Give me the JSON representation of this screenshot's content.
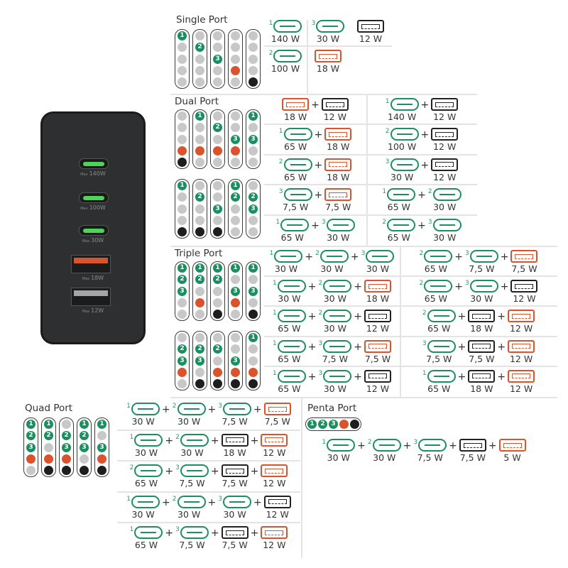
{
  "colors": {
    "usb_c": "#1a8f5f",
    "usb_a_orange": "#d9542c",
    "usb_a_black": "#222222",
    "charger_body": "#2e2f31"
  },
  "charger": {
    "ports": [
      {
        "type": "usb-c",
        "max_label": "Max",
        "watt": "140W"
      },
      {
        "type": "usb-c",
        "max_label": "Max",
        "watt": "100W"
      },
      {
        "type": "usb-c",
        "max_label": "Max",
        "watt": "30W"
      },
      {
        "type": "usb-a",
        "color": "orange",
        "max_label": "Max",
        "watt": "18W"
      },
      {
        "type": "usb-a",
        "color": "gray",
        "max_label": "Max",
        "watt": "12W"
      }
    ]
  },
  "single": {
    "title": "Single Port",
    "indicators": [
      [
        [
          "1",
          "",
          "",
          "",
          ""
        ],
        [
          "",
          "2",
          "",
          "",
          ""
        ],
        [
          "",
          "",
          "3",
          "",
          ""
        ],
        [
          "",
          "",
          "",
          "orange",
          ""
        ],
        [
          "",
          "",
          "",
          "",
          "black"
        ]
      ]
    ],
    "rows": [
      [
        [
          {
            "type": "c",
            "port": "1",
            "watt": "140 W"
          }
        ],
        [
          {
            "type": "c",
            "port": "3",
            "watt": "30 W"
          }
        ],
        [
          {
            "type": "a",
            "color": "black",
            "watt": "12 W"
          }
        ]
      ],
      [
        [
          {
            "type": "c",
            "port": "2",
            "watt": "100 W"
          }
        ],
        [
          {
            "type": "a",
            "color": "orange",
            "watt": "18 W"
          }
        ]
      ]
    ]
  },
  "dual": {
    "title": "Dual Port",
    "indicators": [
      [
        [
          "",
          "",
          "",
          "orange",
          "black"
        ],
        [
          "1",
          "",
          "",
          "orange",
          ""
        ],
        [
          "",
          "2",
          "",
          "orange",
          ""
        ],
        [
          "",
          "",
          "3",
          "orange",
          ""
        ],
        [
          "1",
          "",
          "3",
          "",
          ""
        ]
      ],
      [
        [
          "1",
          "",
          "",
          "",
          "black"
        ],
        [
          "",
          "2",
          "",
          "",
          "black"
        ],
        [
          "",
          "",
          "3",
          "",
          "black"
        ],
        [
          "1",
          "2",
          "",
          "",
          ""
        ],
        [
          "",
          "2",
          "3",
          "",
          ""
        ]
      ]
    ],
    "rows": [
      [
        [
          {
            "type": "a",
            "color": "orange",
            "watt": "18 W"
          },
          {
            "type": "a",
            "color": "black",
            "watt": "12 W"
          }
        ],
        [
          {
            "type": "c",
            "port": "1",
            "watt": "140 W"
          },
          {
            "type": "a",
            "color": "black",
            "watt": "12 W"
          }
        ]
      ],
      [
        [
          {
            "type": "c",
            "port": "1",
            "watt": "65 W"
          },
          {
            "type": "a",
            "color": "orange",
            "watt": "18 W"
          }
        ],
        [
          {
            "type": "c",
            "port": "2",
            "watt": "100 W"
          },
          {
            "type": "a",
            "color": "black",
            "watt": "12 W"
          }
        ]
      ],
      [
        [
          {
            "type": "c",
            "port": "2",
            "watt": "65 W"
          },
          {
            "type": "a",
            "color": "orange",
            "watt": "18 W"
          }
        ],
        [
          {
            "type": "c",
            "port": "3",
            "watt": "30 W"
          },
          {
            "type": "a",
            "color": "black",
            "watt": "12 W"
          }
        ]
      ],
      [
        [
          {
            "type": "c",
            "port": "3",
            "watt": "7,5 W"
          },
          {
            "type": "a",
            "color": "orange",
            "watt": "7,5 W"
          }
        ],
        [
          {
            "type": "c",
            "port": "1",
            "watt": "65 W"
          },
          {
            "type": "c",
            "port": "2",
            "watt": "30 W"
          }
        ]
      ],
      [
        [
          {
            "type": "c",
            "port": "1",
            "watt": "65 W"
          },
          {
            "type": "c",
            "port": "3",
            "watt": "30 W"
          }
        ],
        [
          {
            "type": "c",
            "port": "2",
            "watt": "65 W"
          },
          {
            "type": "c",
            "port": "3",
            "watt": "30 W"
          }
        ]
      ]
    ]
  },
  "triple": {
    "title": "Triple Port",
    "indicators": [
      [
        [
          "1",
          "2",
          "3",
          "",
          ""
        ],
        [
          "1",
          "2",
          "",
          "orange",
          ""
        ],
        [
          "1",
          "2",
          "",
          "",
          "black"
        ],
        [
          "1",
          "",
          "3",
          "orange",
          ""
        ],
        [
          "1",
          "",
          "3",
          "",
          "black"
        ]
      ],
      [
        [
          "",
          "2",
          "3",
          "orange",
          ""
        ],
        [
          "",
          "2",
          "3",
          "",
          "black"
        ],
        [
          "",
          "2",
          "",
          "orange",
          "black"
        ],
        [
          "",
          "",
          "3",
          "orange",
          "black"
        ],
        [
          "1",
          "",
          "",
          "orange",
          "black"
        ]
      ]
    ],
    "rows": [
      [
        [
          {
            "type": "c",
            "port": "1",
            "watt": "30 W"
          },
          {
            "type": "c",
            "port": "2",
            "watt": "30 W"
          },
          {
            "type": "c",
            "port": "3",
            "watt": "30 W"
          }
        ],
        [
          {
            "type": "c",
            "port": "2",
            "watt": "65 W"
          },
          {
            "type": "c",
            "port": "3",
            "watt": "7,5 W"
          },
          {
            "type": "a",
            "color": "orange",
            "watt": "7,5 W"
          }
        ]
      ],
      [
        [
          {
            "type": "c",
            "port": "1",
            "watt": "30 W"
          },
          {
            "type": "c",
            "port": "2",
            "watt": "30 W"
          },
          {
            "type": "a",
            "color": "orange",
            "watt": "18 W"
          }
        ],
        [
          {
            "type": "c",
            "port": "2",
            "watt": "65 W"
          },
          {
            "type": "c",
            "port": "3",
            "watt": "30 W"
          },
          {
            "type": "a",
            "color": "black",
            "watt": "12 W"
          }
        ]
      ],
      [
        [
          {
            "type": "c",
            "port": "1",
            "watt": "65 W"
          },
          {
            "type": "c",
            "port": "2",
            "watt": "30 W"
          },
          {
            "type": "a",
            "color": "black",
            "watt": "12 W"
          }
        ],
        [
          {
            "type": "c",
            "port": "2",
            "watt": "65 W"
          },
          {
            "type": "a",
            "color": "black",
            "watt": "18 W"
          },
          {
            "type": "a",
            "color": "orange",
            "watt": "12 W"
          }
        ]
      ],
      [
        [
          {
            "type": "c",
            "port": "1",
            "watt": "65 W"
          },
          {
            "type": "c",
            "port": "3",
            "watt": "7,5 W"
          },
          {
            "type": "a",
            "color": "orange",
            "watt": "7,5 W"
          }
        ],
        [
          {
            "type": "c",
            "port": "3",
            "watt": "7,5 W"
          },
          {
            "type": "a",
            "color": "black",
            "watt": "7,5 W"
          },
          {
            "type": "a",
            "color": "orange",
            "watt": "12 W"
          }
        ]
      ],
      [
        [
          {
            "type": "c",
            "port": "1",
            "watt": "65 W"
          },
          {
            "type": "c",
            "port": "3",
            "watt": "30 W"
          },
          {
            "type": "a",
            "color": "black",
            "watt": "12 W"
          }
        ],
        [
          {
            "type": "c",
            "port": "1",
            "watt": "65 W"
          },
          {
            "type": "a",
            "color": "black",
            "watt": "18 W"
          },
          {
            "type": "a",
            "color": "orange",
            "watt": "12 W"
          }
        ]
      ]
    ]
  },
  "quad": {
    "title": "Quad Port",
    "indicators": [
      [
        [
          "1",
          "2",
          "3",
          "orange",
          ""
        ],
        [
          "1",
          "2",
          "",
          "orange",
          "black"
        ],
        [
          "",
          "2",
          "3",
          "orange",
          "black"
        ],
        [
          "1",
          "2",
          "3",
          "",
          "black"
        ],
        [
          "1",
          "",
          "3",
          "orange",
          "black"
        ]
      ]
    ],
    "rows": [
      [
        [
          {
            "type": "c",
            "port": "1",
            "watt": "30 W"
          },
          {
            "type": "c",
            "port": "2",
            "watt": "30 W"
          },
          {
            "type": "c",
            "port": "3",
            "watt": "7,5 W"
          },
          {
            "type": "a",
            "color": "orange",
            "watt": "7,5 W"
          }
        ]
      ],
      [
        [
          {
            "type": "c",
            "port": "1",
            "watt": "30 W"
          },
          {
            "type": "c",
            "port": "2",
            "watt": "30 W"
          },
          {
            "type": "a",
            "color": "black",
            "watt": "18 W"
          },
          {
            "type": "a",
            "color": "orange",
            "watt": "12 W"
          }
        ]
      ],
      [
        [
          {
            "type": "c",
            "port": "2",
            "watt": "65 W"
          },
          {
            "type": "c",
            "port": "3",
            "watt": "7,5 W"
          },
          {
            "type": "a",
            "color": "black",
            "watt": "7,5 W"
          },
          {
            "type": "a",
            "color": "orange",
            "watt": "12 W"
          }
        ]
      ],
      [
        [
          {
            "type": "c",
            "port": "1",
            "watt": "30 W"
          },
          {
            "type": "c",
            "port": "2",
            "watt": "30 W"
          },
          {
            "type": "c",
            "port": "3",
            "watt": "30 W"
          },
          {
            "type": "a",
            "color": "black",
            "watt": "12 W"
          }
        ]
      ],
      [
        [
          {
            "type": "c",
            "port": "1",
            "watt": "65 W"
          },
          {
            "type": "c",
            "port": "3",
            "watt": "7,5 W"
          },
          {
            "type": "a",
            "color": "black",
            "watt": "7,5 W"
          },
          {
            "type": "a",
            "color": "orange",
            "watt": "12 W"
          }
        ]
      ]
    ]
  },
  "penta": {
    "title": "Penta Port",
    "indicators": [
      [
        [
          "1",
          "2",
          "3",
          "orange",
          "black"
        ]
      ]
    ],
    "rows": [
      [
        [
          {
            "type": "c",
            "port": "1",
            "watt": "30 W"
          },
          {
            "type": "c",
            "port": "2",
            "watt": "30 W"
          },
          {
            "type": "c",
            "port": "3",
            "watt": "7,5 W"
          },
          {
            "type": "a",
            "color": "black",
            "watt": "7,5 W"
          },
          {
            "type": "a",
            "color": "orange",
            "watt": "5 W"
          }
        ]
      ]
    ]
  },
  "plus_sign": "+"
}
